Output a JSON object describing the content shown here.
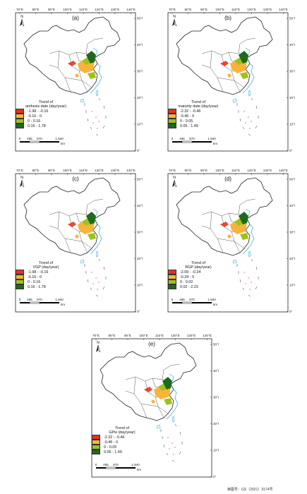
{
  "longitude_labels": [
    "70°E",
    "80°E",
    "90°E",
    "100°E",
    "110°E",
    "120°E",
    "130°E",
    "140°E"
  ],
  "latitude_labels": [
    "50°N",
    "40°N",
    "30°N",
    "20°N",
    "10°N",
    "0°"
  ],
  "north_label": "N",
  "scale_bar": {
    "ticks": [
      "0",
      "485",
      "970",
      "1,940"
    ],
    "unit": "km"
  },
  "panels": [
    {
      "label": "(a)",
      "legend_title": [
        "Trend of",
        "anthesis date (day/year)"
      ],
      "classes": [
        {
          "range": "-1.98 - -0.16",
          "color": "#e8321e"
        },
        {
          "range": "-0.16 - 0",
          "color": "#f6b53a"
        },
        {
          "range": "0 - 0.16",
          "color": "#9ec21c"
        },
        {
          "range": "0.16 - 1.78",
          "color": "#1e6a1c"
        }
      ]
    },
    {
      "label": "(b)",
      "legend_title": [
        "Trend of",
        "maturity date (day/year)"
      ],
      "classes": [
        {
          "range": "-2.32 - -0.46",
          "color": "#e8321e"
        },
        {
          "range": "-0.46 - 0",
          "color": "#f6b53a"
        },
        {
          "range": "0 - 0.05",
          "color": "#9ec21c"
        },
        {
          "range": "0.05 - 1.49",
          "color": "#1e6a1c"
        }
      ]
    },
    {
      "label": "(c)",
      "legend_title": [
        "Trend of",
        "VGP (day/year)"
      ],
      "classes": [
        {
          "range": "-1.98 - -0.16",
          "color": "#e8321e"
        },
        {
          "range": "-0.16 - 0",
          "color": "#f6b53a"
        },
        {
          "range": "0 - 0.16",
          "color": "#9ec21c"
        },
        {
          "range": "0.16 - 1.78",
          "color": "#1e6a1c"
        }
      ]
    },
    {
      "label": "(d)",
      "legend_title": [
        "Trend of",
        "RGP (day/year)"
      ],
      "classes": [
        {
          "range": "-2.09 - -0.24",
          "color": "#e8321e"
        },
        {
          "range": "-0.24 - 0",
          "color": "#f6b53a"
        },
        {
          "range": "0 - 0.02",
          "color": "#9ec21c"
        },
        {
          "range": "0.02 - 2.23",
          "color": "#1e6a1c"
        }
      ]
    },
    {
      "label": "(e)",
      "legend_title": [
        "Trend of",
        "GPw (day/year)"
      ],
      "classes": [
        {
          "range": "-2.32 - -0.46",
          "color": "#e8321e"
        },
        {
          "range": "-0.46 - 0",
          "color": "#f6b53a"
        },
        {
          "range": "0 - 0.05",
          "color": "#9ec21c"
        },
        {
          "range": "0.05 - 1.49",
          "color": "#1e6a1c"
        }
      ]
    }
  ],
  "approval_number": "审图号：GS（2021）3174号"
}
